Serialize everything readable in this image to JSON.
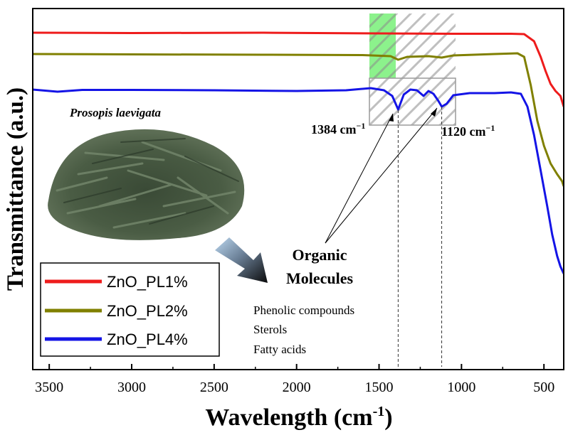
{
  "chart_data": {
    "type": "line",
    "xlabel": "Wavelength (cm",
    "xlabel_sup": "-1",
    "xlabel_end": ")",
    "ylabel": "Transmittance  (a.u.)",
    "xlim": [
      3600,
      380
    ],
    "x_reversed": true,
    "x_ticks": [
      3500,
      3000,
      2500,
      2000,
      1500,
      1000,
      500
    ],
    "grid": false,
    "legend_position": "bottom-left",
    "series": [
      {
        "name": "ZnO_PL1%",
        "color": "#ee1c1c",
        "points": [
          [
            3600,
            46
          ],
          [
            3000,
            46.5
          ],
          [
            2200,
            46
          ],
          [
            1500,
            47
          ],
          [
            1000,
            47.5
          ],
          [
            700,
            47.5
          ],
          [
            620,
            48
          ],
          [
            560,
            58
          ],
          [
            520,
            80
          ],
          [
            490,
            100
          ],
          [
            460,
            118
          ],
          [
            430,
            128
          ],
          [
            400,
            135
          ],
          [
            380,
            150
          ]
        ]
      },
      {
        "name": "ZnO_PL2%",
        "color": "#808000",
        "points": [
          [
            3600,
            76
          ],
          [
            3000,
            76.5
          ],
          [
            2200,
            77
          ],
          [
            1600,
            77.5
          ],
          [
            1430,
            79
          ],
          [
            1384,
            84
          ],
          [
            1330,
            80
          ],
          [
            1200,
            79
          ],
          [
            1120,
            81
          ],
          [
            1050,
            78
          ],
          [
            800,
            76
          ],
          [
            660,
            75
          ],
          [
            620,
            80
          ],
          [
            580,
            120
          ],
          [
            540,
            170
          ],
          [
            500,
            205
          ],
          [
            460,
            230
          ],
          [
            420,
            245
          ],
          [
            390,
            255
          ],
          [
            380,
            262
          ]
        ]
      },
      {
        "name": "ZnO_PL4%",
        "color": "#1414e6",
        "points": [
          [
            3600,
            126
          ],
          [
            3450,
            129
          ],
          [
            3300,
            126.5
          ],
          [
            3000,
            126.5
          ],
          [
            2500,
            127
          ],
          [
            2000,
            128
          ],
          [
            1700,
            127
          ],
          [
            1550,
            124
          ],
          [
            1470,
            127
          ],
          [
            1420,
            135
          ],
          [
            1384,
            154
          ],
          [
            1350,
            133
          ],
          [
            1310,
            126
          ],
          [
            1270,
            127
          ],
          [
            1230,
            135
          ],
          [
            1200,
            128
          ],
          [
            1170,
            132
          ],
          [
            1140,
            142
          ],
          [
            1120,
            150
          ],
          [
            1090,
            146
          ],
          [
            1050,
            134
          ],
          [
            950,
            131
          ],
          [
            800,
            131
          ],
          [
            700,
            130
          ],
          [
            640,
            132
          ],
          [
            600,
            150
          ],
          [
            560,
            190
          ],
          [
            520,
            240
          ],
          [
            480,
            290
          ],
          [
            450,
            330
          ],
          [
            420,
            360
          ],
          [
            400,
            375
          ],
          [
            390,
            380
          ],
          [
            380,
            385
          ]
        ]
      }
    ],
    "annotations": {
      "peak1_label": "1384 cm",
      "peak1_sup": "−1",
      "peak1_x": 1384,
      "peak2_label": "1120 cm",
      "peak2_sup": "−1",
      "peak2_x": 1120,
      "species": "Prosopis laevigata",
      "organic_line1": "Organic",
      "organic_line2": "Molecules",
      "compounds": [
        "Phenolic compounds",
        "Sterols",
        "Fatty acids"
      ]
    }
  }
}
